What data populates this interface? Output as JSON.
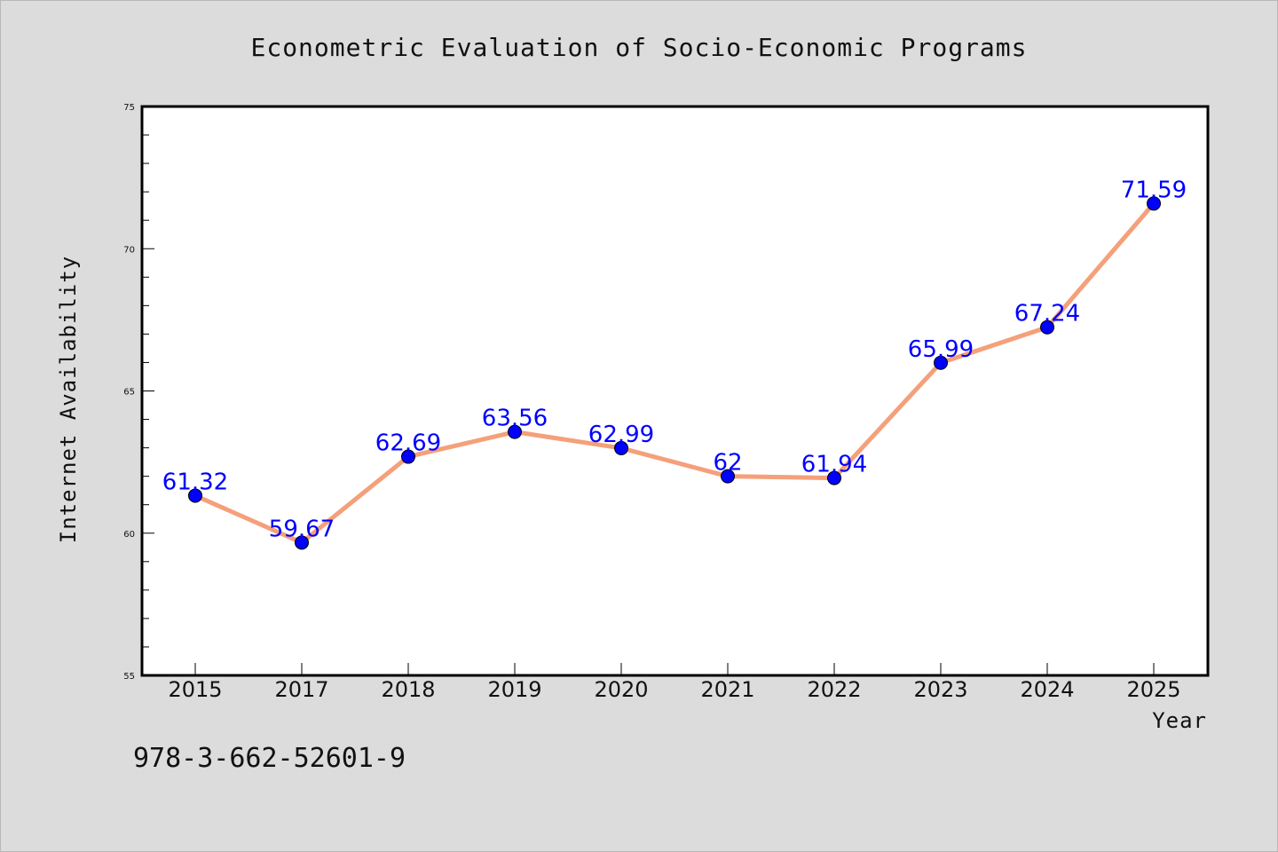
{
  "chart_data": {
    "type": "line",
    "title": "Econometric Evaluation of Socio-Economic Programs",
    "xlabel": "Year",
    "ylabel": "Internet Availability",
    "categories": [
      "2015",
      "2017",
      "2018",
      "2019",
      "2020",
      "2021",
      "2022",
      "2023",
      "2024",
      "2025"
    ],
    "series": [
      {
        "values": [
          61.32,
          59.67,
          62.69,
          63.56,
          62.99,
          62,
          61.94,
          65.99,
          67.24,
          71.59
        ],
        "data_labels": [
          "61.32",
          "59.67",
          "62.69",
          "63.56",
          "62.99",
          "62",
          "61.94",
          "65.99",
          "67.24",
          "71.59"
        ],
        "line_color": "#f4a07a",
        "marker_color": "#0000ff",
        "label_color": "#0000ff"
      }
    ],
    "ylim": [
      55,
      75
    ],
    "yticks": [
      "55",
      "60",
      "65",
      "70",
      "75"
    ],
    "grid": false,
    "legend": "none"
  },
  "footer": {
    "text": "978-3-662-52601-9"
  },
  "colors": {
    "background": "#dcdcdc",
    "plot_background": "#ffffff",
    "axes": "#000000"
  }
}
